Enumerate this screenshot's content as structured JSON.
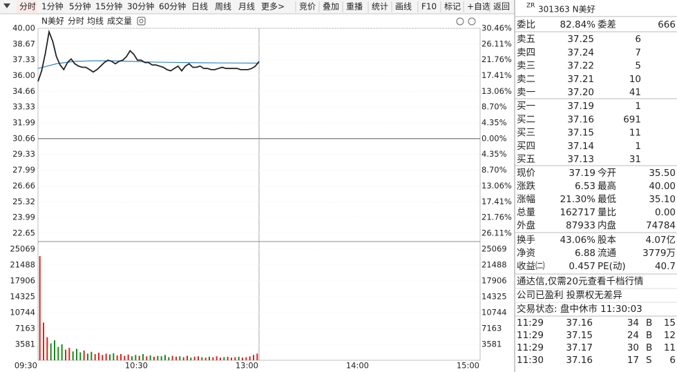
{
  "toolbar": {
    "left": [
      "分时",
      "1分钟",
      "5分钟",
      "15分钟",
      "30分钟",
      "60分钟",
      "日线",
      "周线",
      "月线",
      "更多>"
    ],
    "right": [
      "竞价",
      "叠加",
      "重播",
      "统计",
      "画线",
      "F10",
      "标记",
      "+自选",
      "返回"
    ]
  },
  "chart": {
    "header": {
      "name": "N美好",
      "tabs": [
        "分时",
        "均线",
        "成交量"
      ]
    },
    "price": {
      "ylim": [
        22.65,
        40.0
      ],
      "yticks": [
        {
          "value": 40.0,
          "label": "40.00"
        },
        {
          "value": 38.67,
          "label": "38.67"
        },
        {
          "value": 37.33,
          "label": "37.33"
        },
        {
          "value": 36.0,
          "label": "36.00"
        },
        {
          "value": 34.66,
          "label": "34.66"
        },
        {
          "value": 33.33,
          "label": "33.33"
        },
        {
          "value": 31.99,
          "label": "31.99"
        },
        {
          "value": 30.66,
          "label": "30.66"
        },
        {
          "value": 29.33,
          "label": "29.33"
        },
        {
          "value": 27.99,
          "label": "27.99"
        },
        {
          "value": 26.66,
          "label": "26.66"
        },
        {
          "value": 25.32,
          "label": "25.32"
        },
        {
          "value": 23.99,
          "label": "23.99"
        },
        {
          "value": 22.65,
          "label": "22.65"
        }
      ],
      "pct_ticks": [
        {
          "value": 30.46,
          "label": "30.46%"
        },
        {
          "value": 26.11,
          "label": "26.11%"
        },
        {
          "value": 21.76,
          "label": "21.76%"
        },
        {
          "value": 17.41,
          "label": "17.41%"
        },
        {
          "value": 13.06,
          "label": "13.06%"
        },
        {
          "value": 8.7,
          "label": "8.70%"
        },
        {
          "value": 4.35,
          "label": "4.35%"
        },
        {
          "value": 0.0,
          "label": "0.00%"
        },
        {
          "value": 4.35,
          "label": "4.35%"
        },
        {
          "value": 8.7,
          "label": "8.70%"
        },
        {
          "value": 13.06,
          "label": "13.06%"
        },
        {
          "value": 17.41,
          "label": "17.41%"
        },
        {
          "value": 21.76,
          "label": "21.76%"
        },
        {
          "value": 26.11,
          "label": "26.11%"
        }
      ],
      "values": [
        35.5,
        36.4,
        37.9,
        39.7,
        38.9,
        37.6,
        36.9,
        36.5,
        37.1,
        37.4,
        37.0,
        36.8,
        36.7,
        36.7,
        36.5,
        36.3,
        36.5,
        36.8,
        37.1,
        37.3,
        37.2,
        37.0,
        37.2,
        37.3,
        37.6,
        38.1,
        37.8,
        37.3,
        37.3,
        37.1,
        37.1,
        36.9,
        36.9,
        36.8,
        36.7,
        36.5,
        36.4,
        36.6,
        36.8,
        36.4,
        36.8,
        37.0,
        36.7,
        36.7,
        36.8,
        36.6,
        36.6,
        36.5,
        36.5,
        36.6,
        36.7,
        36.6,
        36.6,
        36.6,
        36.6,
        36.5,
        36.5,
        36.5,
        36.6,
        36.8,
        37.19
      ],
      "color": "#222222",
      "avg_values": [
        36.6,
        37.0,
        37.2,
        37.25,
        37.25,
        37.2,
        37.15,
        37.12,
        37.1,
        37.08,
        37.07,
        37.06,
        37.05
      ],
      "avg_color": "#2f86c8",
      "up_color": "#e0201a",
      "down_color": "#178a17",
      "grid": true
    },
    "volume": {
      "ylim": [
        0,
        25069
      ],
      "yticks": [
        25069,
        21488,
        17906,
        14325,
        10744,
        7163,
        3581
      ],
      "values": [
        23500,
        8500,
        5200,
        3800,
        4500,
        3000,
        3600,
        2400,
        2800,
        2000,
        2600,
        1800,
        2200,
        1500,
        1900,
        1400,
        1700,
        1200,
        1500,
        1300,
        1600,
        1100,
        1400,
        1000,
        1300,
        900,
        1200,
        1000,
        1400,
        900,
        1100,
        800,
        1000,
        900,
        1200,
        700,
        1000,
        800,
        900,
        700,
        1000,
        600,
        800,
        900,
        700,
        600,
        800,
        700,
        900,
        600,
        700,
        800,
        600,
        700,
        800,
        600,
        700,
        900,
        1200,
        1500
      ]
    },
    "time_labels": [
      "09:30",
      "10:30",
      "13:00",
      "14:00",
      "15:00"
    ]
  },
  "quote": {
    "badge": "ZR",
    "title": "301363 N美好",
    "weibi": [
      "委比",
      "82.84%",
      "委差",
      "666"
    ],
    "asks": [
      [
        "卖五",
        "37.25",
        "6"
      ],
      [
        "卖四",
        "37.24",
        "7"
      ],
      [
        "卖三",
        "37.22",
        "5"
      ],
      [
        "卖二",
        "37.21",
        "10"
      ],
      [
        "卖一",
        "37.20",
        "41"
      ]
    ],
    "bids": [
      [
        "买一",
        "37.19",
        "1"
      ],
      [
        "买二",
        "37.16",
        "691"
      ],
      [
        "买三",
        "37.15",
        "11"
      ],
      [
        "买四",
        "37.14",
        "1"
      ],
      [
        "买五",
        "37.13",
        "31"
      ]
    ],
    "stats": [
      [
        "现价",
        "37.19",
        "今开",
        "35.50"
      ],
      [
        "涨跌",
        "6.53",
        "最高",
        "40.00"
      ],
      [
        "涨幅",
        "21.30%",
        "最低",
        "35.10"
      ],
      [
        "总量",
        "162717",
        "量比",
        "0.00"
      ],
      [
        "外盘",
        "87933",
        "内盘",
        "74784"
      ]
    ],
    "more": [
      [
        "换手",
        "43.06%",
        "股本",
        "4.07亿"
      ],
      [
        "净资",
        "6.88",
        "流通",
        "3779万"
      ],
      [
        "收益㈡",
        "0.457",
        "PE(动)",
        "40.7"
      ]
    ],
    "notes": [
      "通达信,仅需20元查看千档行情",
      "公司已盈利 投票权无差异",
      "交易状态: 盘中休市 11:30:03"
    ],
    "ticks": [
      [
        "11:29",
        "37.16",
        "34",
        "B",
        "15"
      ],
      [
        "11:29",
        "37.15",
        "24",
        "B",
        "12"
      ],
      [
        "11:29",
        "37.17",
        "30",
        "B",
        "11"
      ],
      [
        "11:30",
        "37.16",
        "17",
        "S",
        "6"
      ]
    ]
  }
}
